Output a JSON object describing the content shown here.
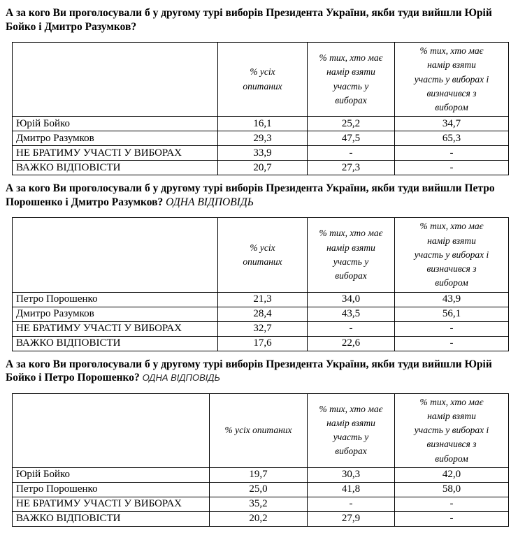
{
  "colors": {
    "background": "#ffffff",
    "text": "#000000",
    "border": "#000000"
  },
  "sections": [
    {
      "heading": "А за кого Ви проголосували б у другому турі виборів Президента України, якби туди вийшли Юрій Бойко і Дмитро Разумков?",
      "note": "",
      "table": {
        "columns": [
          "",
          "% усіх\nопитаних",
          "% тих, хто має\nнамір взяти\nучасть у\nвиборах",
          "% тих, хто має\nнамір взяти\nучасть у виборах і\nвизначився з\nвибором"
        ],
        "rows": [
          {
            "label": "Юрій Бойко",
            "values": [
              "16,1",
              "25,2",
              "34,7"
            ]
          },
          {
            "label": "Дмитро Разумков",
            "values": [
              "29,3",
              "47,5",
              "65,3"
            ]
          },
          {
            "label": "НЕ БРАТИМУ УЧАСТІ У ВИБОРАХ",
            "values": [
              "33,9",
              "-",
              "-"
            ]
          },
          {
            "label": "ВАЖКО ВІДПОВІСТИ",
            "values": [
              "20,7",
              "27,3",
              "-"
            ]
          }
        ]
      }
    },
    {
      "heading": "А за кого Ви проголосували б у другому турі виборів Президента України, якби туди вийшли Петро Порошенко і Дмитро Разумков?",
      "note": "ОДНА ВІДПОВІДЬ",
      "table": {
        "columns": [
          "",
          "% усіх\nопитаних",
          "% тих, хто має\nнамір взяти\nучасть у\nвиборах",
          "% тих, хто має\nнамір взяти\nучасть у виборах і\nвизначився з\nвибором"
        ],
        "rows": [
          {
            "label": "Петро Порошенко",
            "values": [
              "21,3",
              "34,0",
              "43,9"
            ]
          },
          {
            "label": "Дмитро Разумков",
            "values": [
              "28,4",
              "43,5",
              "56,1"
            ]
          },
          {
            "label": "НЕ БРАТИМУ УЧАСТІ У ВИБОРАХ",
            "values": [
              "32,7",
              "-",
              "-"
            ]
          },
          {
            "label": "ВАЖКО ВІДПОВІСТИ",
            "values": [
              "17,6",
              "22,6",
              "-"
            ]
          }
        ]
      }
    },
    {
      "heading": "А за кого Ви проголосували б у другому турі виборів Президента України, якби туди вийшли Юрій Бойко і Петро Порошенко?",
      "note": "ОДНА ВІДПОВІДЬ",
      "table": {
        "columns": [
          "",
          "% усіх опитаних",
          "% тих, хто має\nнамір взяти\nучасть у\nвиборах",
          "% тих, хто має\nнамір взяти\nучасть у виборах і\nвизначився з\nвибором"
        ],
        "rows": [
          {
            "label": "Юрій Бойко",
            "values": [
              "19,7",
              "30,3",
              "42,0"
            ]
          },
          {
            "label": "Петро Порошенко",
            "values": [
              "25,0",
              "41,8",
              "58,0"
            ]
          },
          {
            "label": "НЕ БРАТИМУ УЧАСТІ У ВИБОРАХ",
            "values": [
              "35,2",
              "-",
              "-"
            ]
          },
          {
            "label": "ВАЖКО ВІДПОВІСТИ",
            "values": [
              "20,2",
              "27,9",
              "-"
            ]
          }
        ]
      }
    }
  ]
}
